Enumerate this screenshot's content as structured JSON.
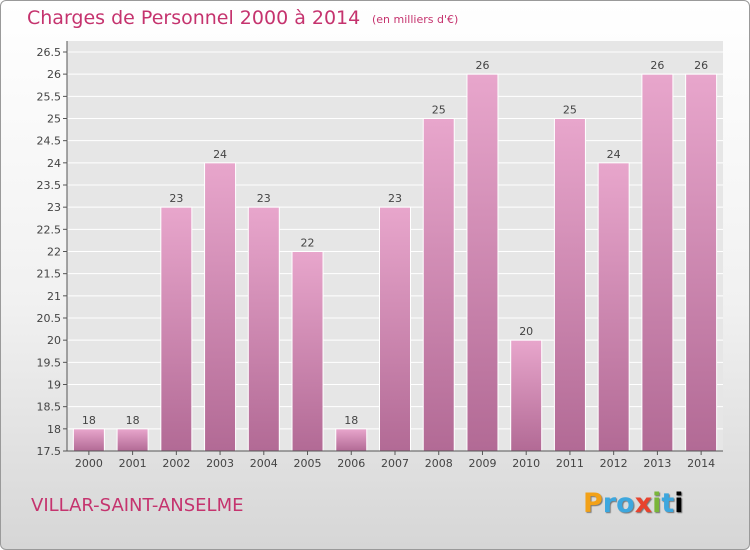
{
  "title": "Charges de Personnel 2000 à 2014",
  "subtitle": "(en milliers d'€)",
  "town": "VILLAR-SAINT-ANSELME",
  "logo": "Proxiti",
  "colors": {
    "title": "#c5336e",
    "bar_top": "#e8a6cc",
    "bar_bottom": "#b26a95",
    "grid": "#ffffff"
  },
  "chart_data": {
    "type": "bar",
    "title": "Charges de Personnel 2000 à 2014",
    "subtitle": "(en milliers d'€)",
    "xlabel": "",
    "ylabel": "",
    "categories": [
      "2000",
      "2001",
      "2002",
      "2003",
      "2004",
      "2005",
      "2006",
      "2007",
      "2008",
      "2009",
      "2010",
      "2011",
      "2012",
      "2013",
      "2014"
    ],
    "values": [
      18,
      18,
      23,
      24,
      23,
      22,
      18,
      23,
      25,
      26,
      20,
      25,
      24,
      26,
      26
    ],
    "ylim": [
      17.5,
      26.5
    ],
    "yticks": [
      "17.5",
      "18",
      "18.5",
      "19",
      "19.5",
      "20",
      "20.5",
      "21",
      "21.5",
      "22",
      "22.5",
      "23",
      "23.5",
      "24",
      "24.5",
      "25",
      "25.5",
      "26",
      "26.5"
    ],
    "grid": true,
    "legend": "none"
  }
}
